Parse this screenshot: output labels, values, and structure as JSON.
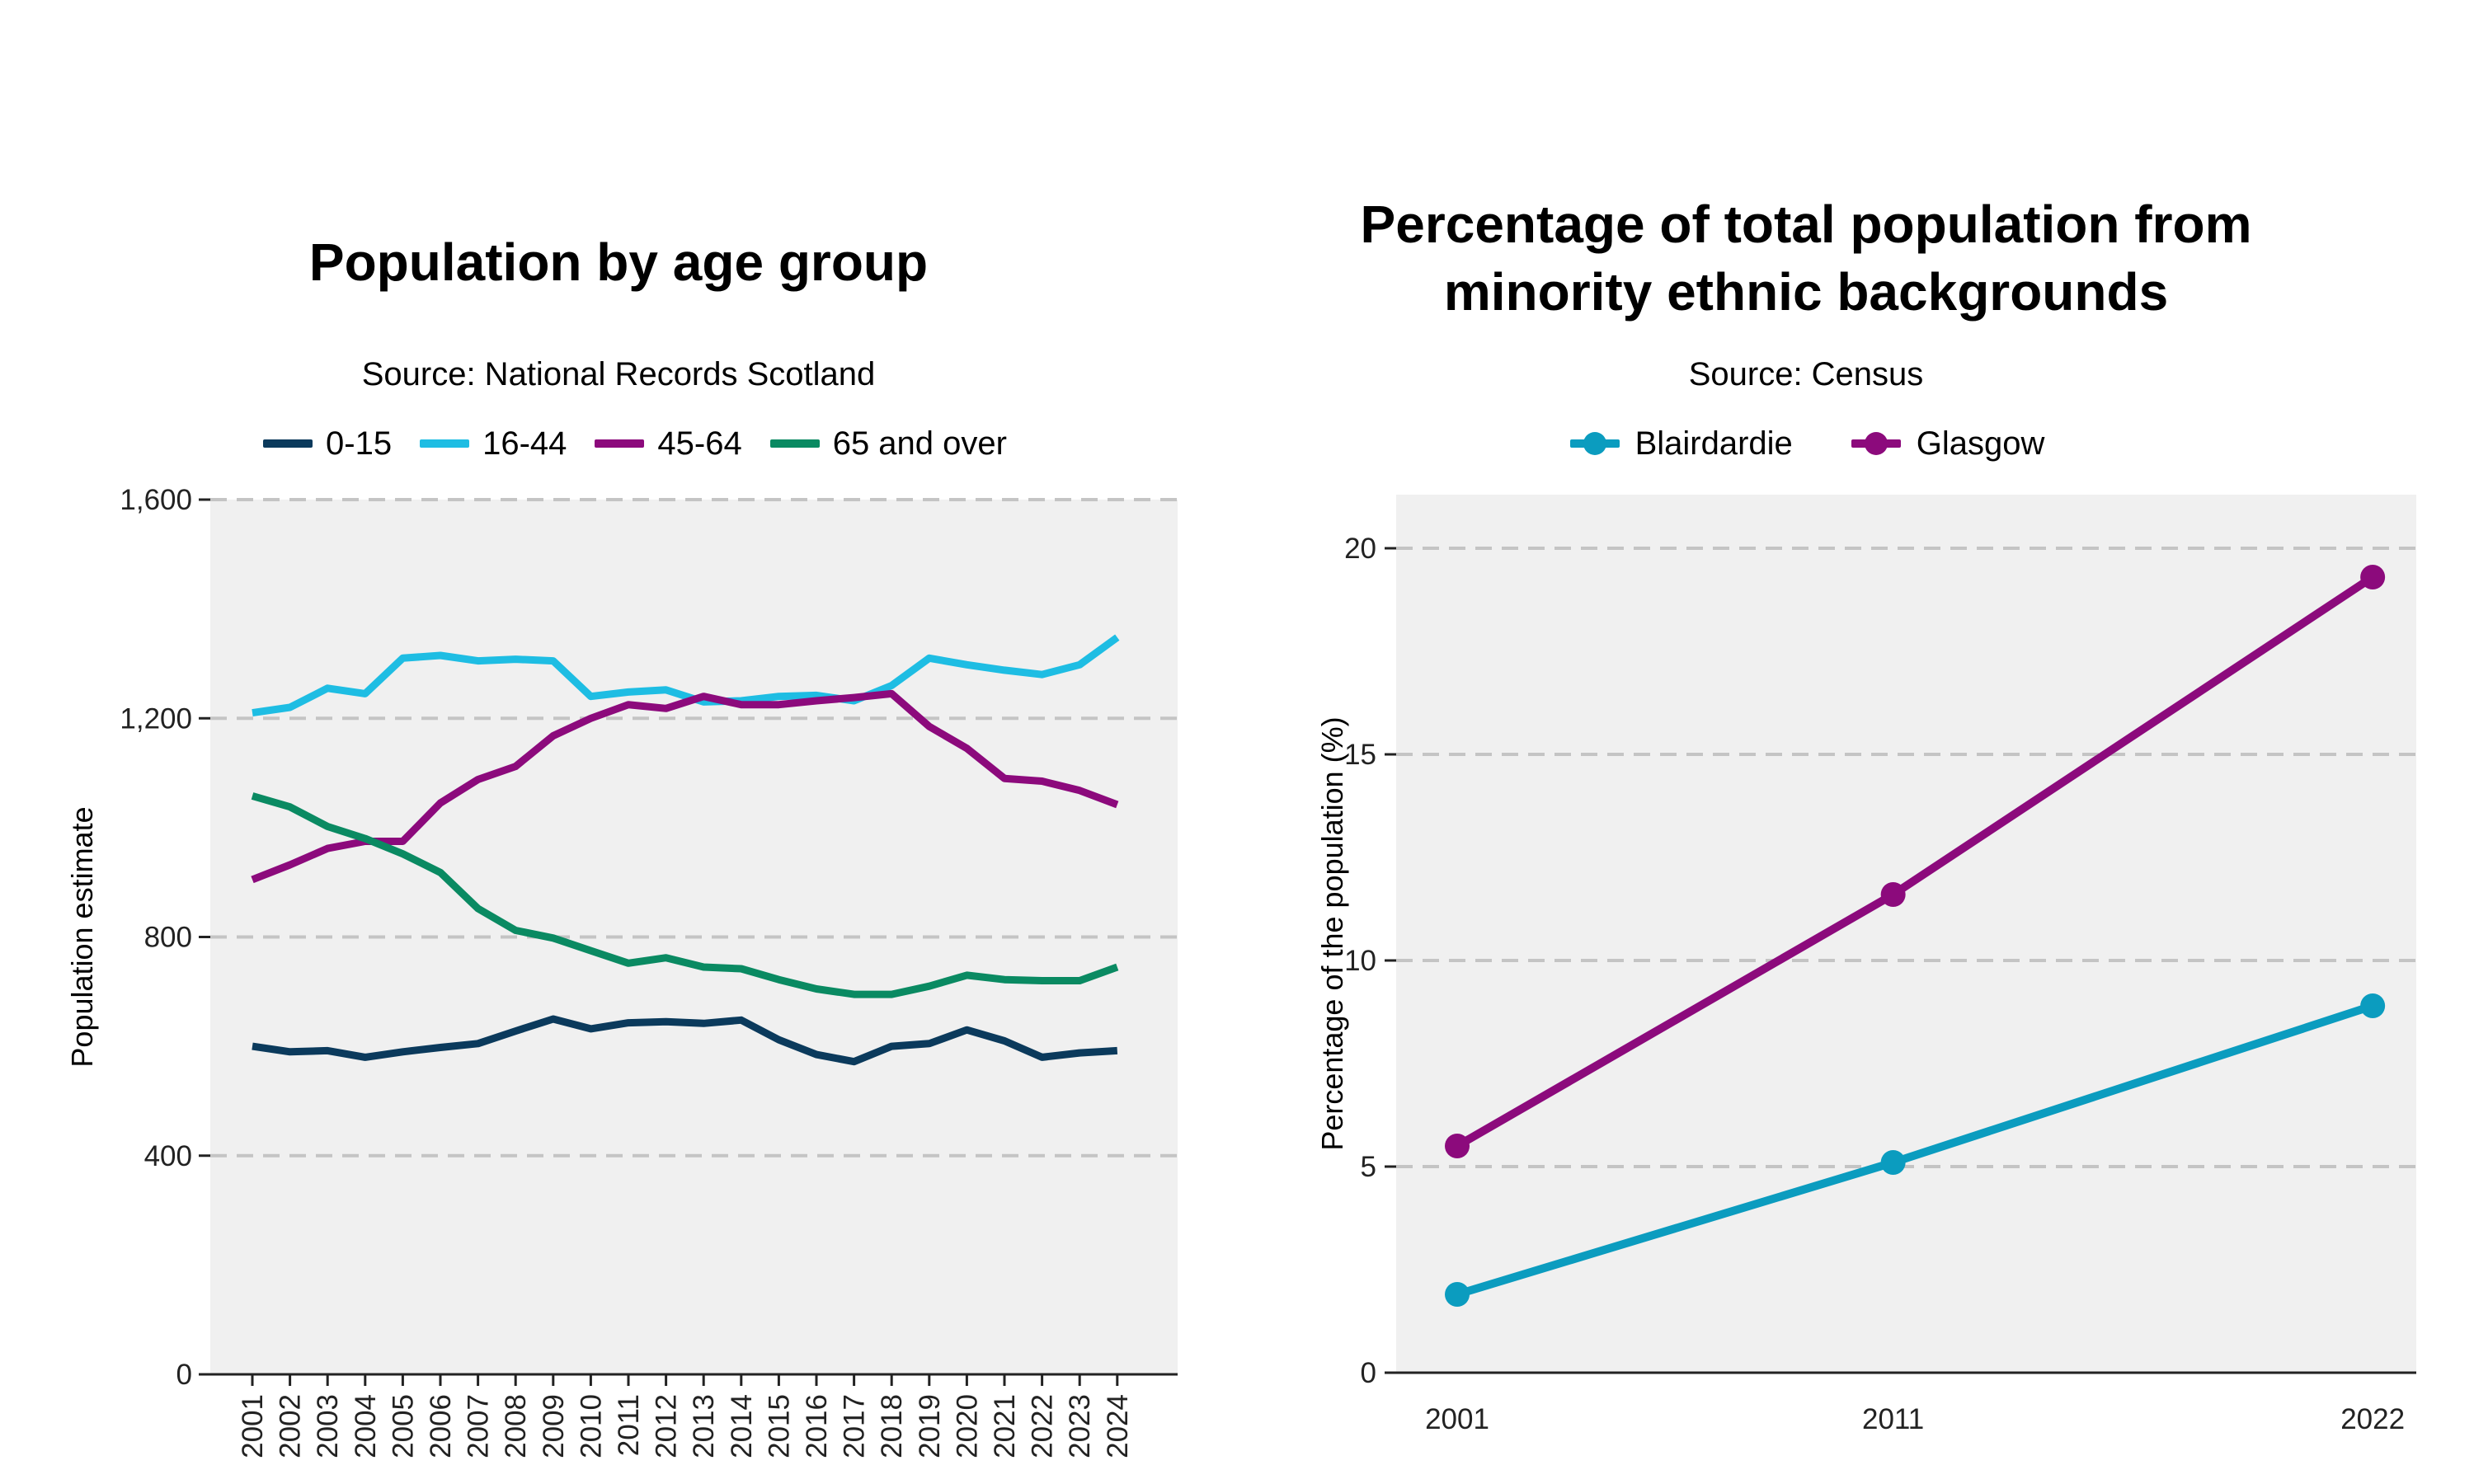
{
  "colors": {
    "panel_bg": "#f0f0f0",
    "grid": "#c4c4c4",
    "axis": "#222222",
    "age_0_15": "#0b3a5c",
    "age_16_44": "#1ebde3",
    "age_45_64": "#8c0a7c",
    "age_65_over": "#0a8a62",
    "blairdardie": "#0b9cbf",
    "glasgow": "#8c0a7c"
  },
  "left": {
    "title": "Population by age group",
    "subtitle": "Source: National Records Scotland",
    "legend": [
      "0-15",
      "16-44",
      "45-64",
      "65 and over"
    ],
    "y_ticks": [
      "0",
      "400",
      "800",
      "1,200",
      "1,600"
    ]
  },
  "right": {
    "title_line1": "Percentage of total population from",
    "title_line2": "minority ethnic backgrounds",
    "subtitle": "Source: Census",
    "legend": [
      "Blairdardie",
      "Glasgow"
    ],
    "y_ticks": [
      "0",
      "5",
      "10",
      "15",
      "20"
    ]
  },
  "chart_data": [
    {
      "type": "line",
      "title": "Population by age group",
      "subtitle": "Source: National Records Scotland",
      "xlabel": "",
      "ylabel": "Population estimate",
      "x": [
        "2001",
        "2002",
        "2003",
        "2004",
        "2005",
        "2006",
        "2007",
        "2008",
        "2009",
        "2010",
        "2011",
        "2012",
        "2013",
        "2014",
        "2015",
        "2016",
        "2017",
        "2018",
        "2019",
        "2020",
        "2021",
        "2022",
        "2023",
        "2024"
      ],
      "ylim": [
        0,
        1600
      ],
      "y_ticks": [
        0,
        400,
        800,
        1200,
        1600
      ],
      "grid": "horizontal dashed",
      "legend_position": "top",
      "series": [
        {
          "name": "0-15",
          "color": "#0b3a5c",
          "values": [
            600,
            590,
            592,
            580,
            590,
            598,
            605,
            628,
            650,
            632,
            643,
            645,
            642,
            648,
            612,
            585,
            572,
            600,
            605,
            630,
            610,
            580,
            588,
            592
          ]
        },
        {
          "name": "16-44",
          "color": "#1ebde3",
          "values": [
            1210,
            1220,
            1255,
            1245,
            1310,
            1315,
            1305,
            1308,
            1305,
            1240,
            1248,
            1252,
            1230,
            1232,
            1240,
            1242,
            1232,
            1260,
            1310,
            1298,
            1288,
            1280,
            1298,
            1348
          ]
        },
        {
          "name": "45-64",
          "color": "#8c0a7c",
          "values": [
            905,
            932,
            962,
            975,
            975,
            1045,
            1088,
            1112,
            1168,
            1200,
            1225,
            1218,
            1240,
            1225,
            1225,
            1232,
            1238,
            1245,
            1185,
            1145,
            1090,
            1085,
            1068,
            1042
          ]
        },
        {
          "name": "65 and over",
          "color": "#0a8a62",
          "values": [
            1058,
            1038,
            1002,
            980,
            952,
            918,
            852,
            812,
            798,
            775,
            752,
            762,
            745,
            742,
            722,
            705,
            695,
            695,
            710,
            730,
            722,
            720,
            720,
            745
          ]
        }
      ]
    },
    {
      "type": "line",
      "title": "Percentage of total population from minority ethnic backgrounds",
      "subtitle": "Source: Census",
      "xlabel": "",
      "ylabel": "Percentage of the population (%)",
      "x": [
        2001,
        2011,
        2022
      ],
      "ylim": [
        0,
        21.3
      ],
      "y_ticks": [
        0,
        5,
        10,
        15,
        20
      ],
      "grid": "horizontal dashed",
      "legend_position": "top",
      "markers": true,
      "series": [
        {
          "name": "Blairdardie",
          "color": "#0b9cbf",
          "values": [
            1.9,
            5.1,
            8.9
          ]
        },
        {
          "name": "Glasgow",
          "color": "#8c0a7c",
          "values": [
            5.5,
            11.6,
            19.3
          ]
        }
      ]
    }
  ]
}
